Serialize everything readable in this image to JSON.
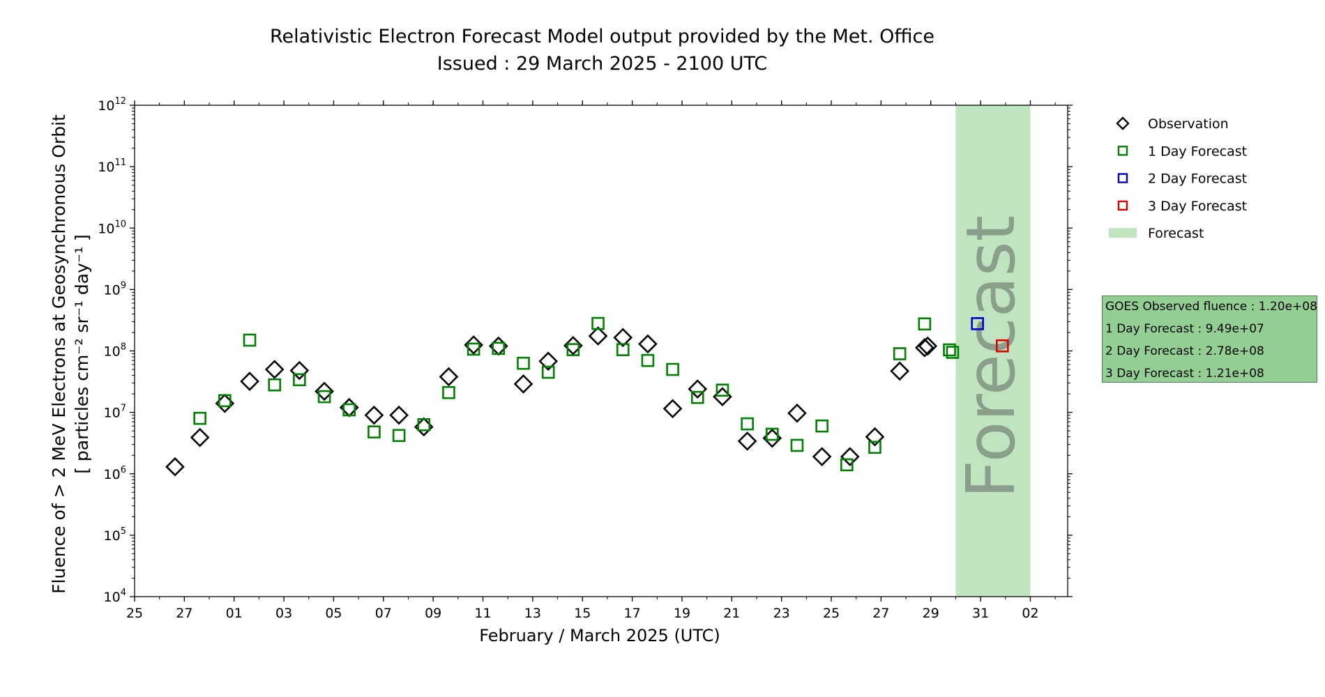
{
  "title": {
    "line1": "Relativistic Electron Forecast Model output provided by the Met. Office",
    "line2": "Issued : 29 March 2025 - 2100 UTC"
  },
  "info_box": {
    "observed": "GOES Observed fluence : 1.20e+08",
    "day1": "1 Day Forecast : 9.49e+07",
    "day2": "2 Day Forecast : 2.78e+08",
    "day3": "3 Day Forecast : 1.21e+08"
  },
  "colors": {
    "observation": "#000000",
    "day1": "#008000",
    "day2": "#0000cc",
    "day3": "#e00000",
    "forecast_band": "#bfe4bf",
    "forecast_text": "#8a9f8a",
    "info_box_bg": "#93cf93"
  },
  "chart_data": {
    "type": "scatter",
    "xlabel": "February / March 2025 (UTC)",
    "ylabel_line1": "Fluence of > 2 MeV Electrons at Geosynchronous Orbit",
    "ylabel_line2": "[ particles cm⁻² sr⁻¹ day⁻¹ ]",
    "y_scale": "log",
    "ylim": [
      10000,
      1000000000000
    ],
    "y_tick_exponents": [
      4,
      5,
      6,
      7,
      8,
      9,
      10,
      11,
      12
    ],
    "x_tick_base": "10",
    "xlim": [
      "2025-02-25T00:00",
      "2025-04-03T12:00"
    ],
    "x_ticks": [
      {
        "date": "2025-02-25",
        "label": "25"
      },
      {
        "date": "2025-02-27",
        "label": "27"
      },
      {
        "date": "2025-03-01",
        "label": "01"
      },
      {
        "date": "2025-03-03",
        "label": "03"
      },
      {
        "date": "2025-03-05",
        "label": "05"
      },
      {
        "date": "2025-03-07",
        "label": "07"
      },
      {
        "date": "2025-03-09",
        "label": "09"
      },
      {
        "date": "2025-03-11",
        "label": "11"
      },
      {
        "date": "2025-03-13",
        "label": "13"
      },
      {
        "date": "2025-03-15",
        "label": "15"
      },
      {
        "date": "2025-03-17",
        "label": "17"
      },
      {
        "date": "2025-03-19",
        "label": "19"
      },
      {
        "date": "2025-03-21",
        "label": "21"
      },
      {
        "date": "2025-03-23",
        "label": "23"
      },
      {
        "date": "2025-03-25",
        "label": "25"
      },
      {
        "date": "2025-03-27",
        "label": "27"
      },
      {
        "date": "2025-03-29",
        "label": "29"
      },
      {
        "date": "2025-03-31",
        "label": "31"
      },
      {
        "date": "2025-04-02",
        "label": "02"
      }
    ],
    "forecast_region": {
      "label": "Forecast",
      "start": "2025-03-30T00:00",
      "end": "2025-04-02T00:00"
    },
    "legend_position": "outside-right",
    "legend": [
      {
        "key": "observation",
        "label": "Observation",
        "marker": "diamond"
      },
      {
        "key": "day1",
        "label": "1 Day Forecast",
        "marker": "square"
      },
      {
        "key": "day2",
        "label": "2 Day Forecast",
        "marker": "square"
      },
      {
        "key": "day3",
        "label": "3 Day Forecast",
        "marker": "square"
      },
      {
        "key": "band",
        "label": "Forecast",
        "marker": "patch"
      }
    ],
    "series": [
      {
        "key": "observation",
        "name": "Observation",
        "marker": "diamond",
        "points": [
          {
            "x": "2025-02-26T15:00",
            "y": 1300000
          },
          {
            "x": "2025-02-27T15:00",
            "y": 3900000
          },
          {
            "x": "2025-02-28T15:00",
            "y": 14000000
          },
          {
            "x": "2025-03-01T15:00",
            "y": 32000000
          },
          {
            "x": "2025-03-02T15:00",
            "y": 50000000
          },
          {
            "x": "2025-03-03T15:00",
            "y": 48000000
          },
          {
            "x": "2025-03-04T15:00",
            "y": 22000000
          },
          {
            "x": "2025-03-05T15:00",
            "y": 12000000
          },
          {
            "x": "2025-03-06T15:00",
            "y": 9000000
          },
          {
            "x": "2025-03-07T15:00",
            "y": 9000000
          },
          {
            "x": "2025-03-08T15:00",
            "y": 5800000
          },
          {
            "x": "2025-03-09T15:00",
            "y": 38000000
          },
          {
            "x": "2025-03-10T15:00",
            "y": 125000000
          },
          {
            "x": "2025-03-11T15:00",
            "y": 120000000
          },
          {
            "x": "2025-03-12T15:00",
            "y": 29000000
          },
          {
            "x": "2025-03-13T15:00",
            "y": 68000000
          },
          {
            "x": "2025-03-14T15:00",
            "y": 122000000
          },
          {
            "x": "2025-03-15T15:00",
            "y": 175000000
          },
          {
            "x": "2025-03-16T15:00",
            "y": 165000000
          },
          {
            "x": "2025-03-17T15:00",
            "y": 130000000
          },
          {
            "x": "2025-03-18T15:00",
            "y": 11500000
          },
          {
            "x": "2025-03-19T15:00",
            "y": 24000000
          },
          {
            "x": "2025-03-20T15:00",
            "y": 18000000
          },
          {
            "x": "2025-03-21T15:00",
            "y": 3400000
          },
          {
            "x": "2025-03-22T15:00",
            "y": 3800000
          },
          {
            "x": "2025-03-23T15:00",
            "y": 9700000
          },
          {
            "x": "2025-03-24T15:00",
            "y": 1900000
          },
          {
            "x": "2025-03-25T18:00",
            "y": 1900000
          },
          {
            "x": "2025-03-26T18:00",
            "y": 4000000
          },
          {
            "x": "2025-03-27T18:00",
            "y": 47000000
          },
          {
            "x": "2025-03-28T18:00",
            "y": 113000000
          },
          {
            "x": "2025-03-28T21:00",
            "y": 120000000
          }
        ]
      },
      {
        "key": "day1",
        "name": "1 Day Forecast",
        "marker": "square",
        "points": [
          {
            "x": "2025-02-27T15:00",
            "y": 8000000
          },
          {
            "x": "2025-02-28T15:00",
            "y": 15500000
          },
          {
            "x": "2025-03-01T15:00",
            "y": 150000000
          },
          {
            "x": "2025-03-02T15:00",
            "y": 28000000
          },
          {
            "x": "2025-03-03T15:00",
            "y": 34000000
          },
          {
            "x": "2025-03-04T15:00",
            "y": 18000000
          },
          {
            "x": "2025-03-05T15:00",
            "y": 11000000
          },
          {
            "x": "2025-03-06T15:00",
            "y": 4800000
          },
          {
            "x": "2025-03-07T15:00",
            "y": 4200000
          },
          {
            "x": "2025-03-08T15:00",
            "y": 6300000
          },
          {
            "x": "2025-03-09T15:00",
            "y": 21000000
          },
          {
            "x": "2025-03-10T15:00",
            "y": 107000000
          },
          {
            "x": "2025-03-11T15:00",
            "y": 110000000
          },
          {
            "x": "2025-03-12T15:00",
            "y": 63000000
          },
          {
            "x": "2025-03-13T15:00",
            "y": 45000000
          },
          {
            "x": "2025-03-14T15:00",
            "y": 105000000
          },
          {
            "x": "2025-03-15T15:00",
            "y": 280000000
          },
          {
            "x": "2025-03-16T15:00",
            "y": 105000000
          },
          {
            "x": "2025-03-17T15:00",
            "y": 70000000
          },
          {
            "x": "2025-03-18T15:00",
            "y": 50000000
          },
          {
            "x": "2025-03-19T15:00",
            "y": 17500000
          },
          {
            "x": "2025-03-20T15:00",
            "y": 23000000
          },
          {
            "x": "2025-03-21T15:00",
            "y": 6500000
          },
          {
            "x": "2025-03-22T15:00",
            "y": 4400000
          },
          {
            "x": "2025-03-23T15:00",
            "y": 2900000
          },
          {
            "x": "2025-03-24T15:00",
            "y": 6000000
          },
          {
            "x": "2025-03-25T15:00",
            "y": 1400000
          },
          {
            "x": "2025-03-26T18:00",
            "y": 2700000
          },
          {
            "x": "2025-03-27T18:00",
            "y": 90000000
          },
          {
            "x": "2025-03-28T18:00",
            "y": 275000000
          },
          {
            "x": "2025-03-29T18:00",
            "y": 104000000
          },
          {
            "x": "2025-03-29T21:00",
            "y": 94900000
          }
        ]
      },
      {
        "key": "day2",
        "name": "2 Day Forecast",
        "marker": "square",
        "points": [
          {
            "x": "2025-03-30T21:00",
            "y": 278000000
          }
        ]
      },
      {
        "key": "day3",
        "name": "3 Day Forecast",
        "marker": "square",
        "points": [
          {
            "x": "2025-03-31T21:00",
            "y": 121000000
          }
        ]
      }
    ]
  }
}
